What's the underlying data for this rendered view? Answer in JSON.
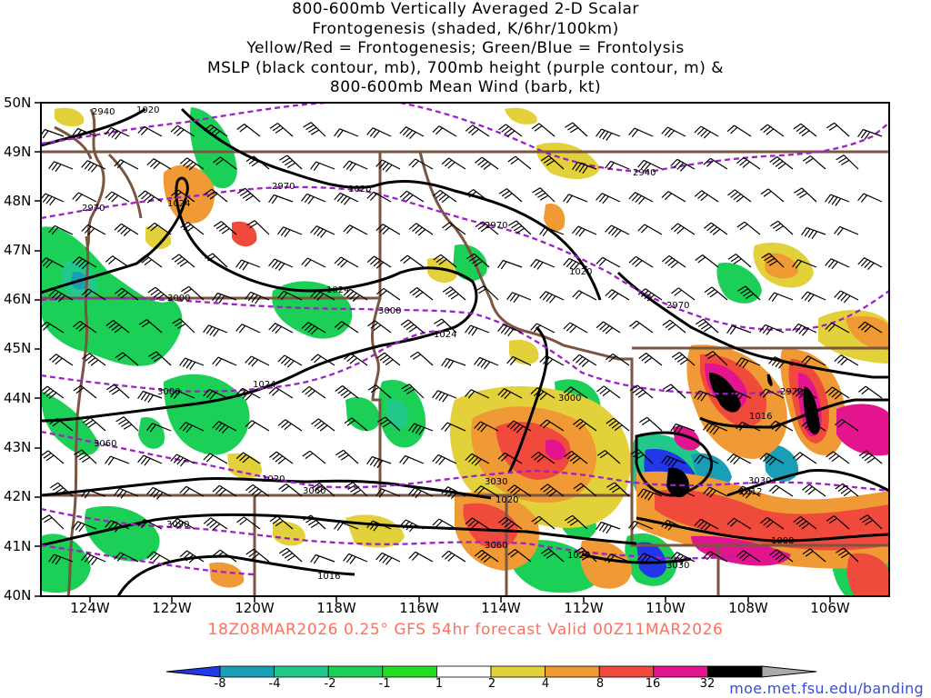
{
  "title_lines": [
    "800-600mb Vertically Averaged 2-D Scalar",
    "Frontogenesis (shaded, K/6hr/100km)",
    "Yellow/Red = Frontogenesis;  Green/Blue = Frontolysis",
    "MSLP (black contour, mb), 700mb height (purple contour, m) &",
    "800-600mb Mean Wind (barb, kt)"
  ],
  "lat_labels": [
    "50N",
    "49N",
    "48N",
    "47N",
    "46N",
    "45N",
    "44N",
    "43N",
    "42N",
    "41N",
    "40N"
  ],
  "lon_labels": [
    "124W",
    "122W",
    "120W",
    "118W",
    "116W",
    "114W",
    "112W",
    "110W",
    "108W",
    "106W"
  ],
  "valid_time": "18Z08MAR2026 0.25° GFS 54hr forecast Valid 00Z11MAR2026",
  "credit": "moe.met.fsu.edu/banding",
  "colorbar": {
    "labels": [
      "-8",
      "-4",
      "-2",
      "-1",
      "1",
      "2",
      "4",
      "8",
      "16",
      "32"
    ],
    "colors": [
      "#2238e8",
      "#1a9eb6",
      "#22c88a",
      "#1ccf56",
      "#22dd22",
      "#ffffff",
      "#e3d13c",
      "#f09a36",
      "#f04a3c",
      "#e4148e",
      "#000000",
      "#aaaaaa"
    ]
  },
  "mslp_labels": [
    "1020",
    "1024",
    "1020",
    "1024",
    "1020",
    "1024",
    "1024",
    "1020",
    "1020",
    "1020",
    "1016",
    "1016",
    "1012",
    "1008",
    "1016"
  ],
  "height_labels": [
    "2940",
    "2970",
    "2940",
    "2970",
    "2970",
    "3000",
    "3000",
    "2970",
    "3000",
    "3030",
    "3060",
    "3060",
    "3030",
    "3090",
    "3000",
    "3030",
    "3060",
    "3030",
    "2970"
  ]
}
